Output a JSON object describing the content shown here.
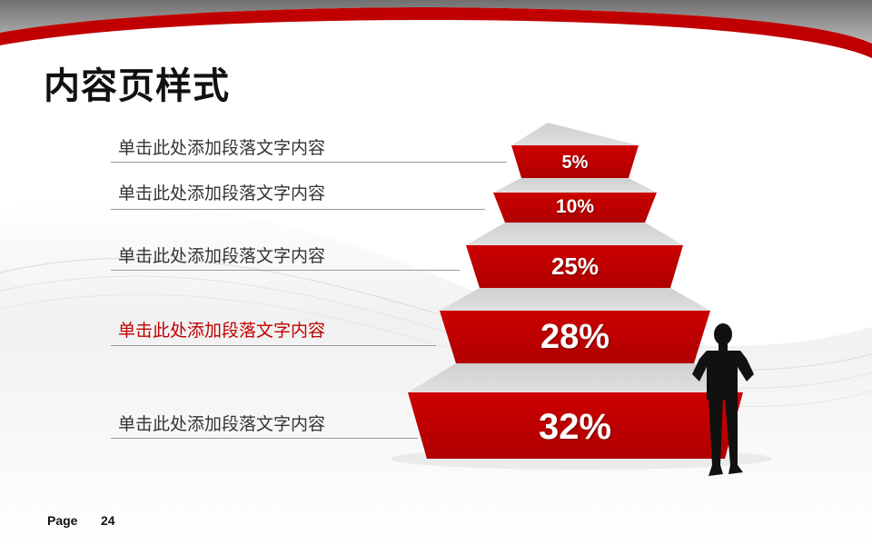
{
  "slide": {
    "title": "内容页样式",
    "labels": [
      "单击此处添加段落文字内容",
      "单击此处添加段落文字内容",
      "单击此处添加段落文字内容",
      "单击此处添加段落文字内容",
      "单击此处添加段落文字内容"
    ],
    "percentages": [
      "5%",
      "10%",
      "25%",
      "28%",
      "32%"
    ],
    "footer": {
      "page_label": "Page",
      "page_number": "24"
    }
  },
  "colors": {
    "accent": "#C00000",
    "tier_top": "#d2d2d2",
    "text": "#333333"
  }
}
